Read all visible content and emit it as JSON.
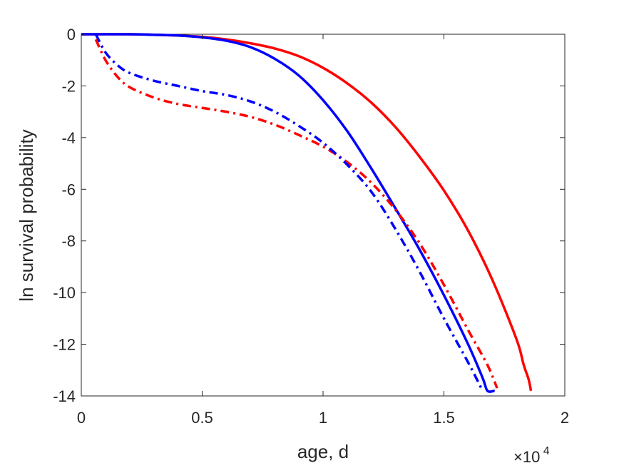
{
  "chart_data": {
    "type": "line",
    "title": "",
    "xlabel": "age, d",
    "ylabel": "ln survival probability",
    "x_multiplier": "×10",
    "x_multiplier_exponent": "4",
    "xlim": [
      0,
      20000
    ],
    "ylim": [
      -14,
      0
    ],
    "xticks": [
      0,
      5000,
      10000,
      15000,
      20000
    ],
    "xtick_labels": [
      "0",
      "0.5",
      "1",
      "1.5",
      "2"
    ],
    "yticks": [
      0,
      -2,
      -4,
      -6,
      -8,
      -10,
      -12,
      -14
    ],
    "ytick_labels": [
      "0",
      "-2",
      "-4",
      "-6",
      "-8",
      "-10",
      "-12",
      "-14"
    ],
    "grid": false,
    "legend": false,
    "series": [
      {
        "color": "#ff0000",
        "style": "solid",
        "points": [
          [
            0,
            0
          ],
          [
            2000,
            0
          ],
          [
            4000,
            -0.05
          ],
          [
            5000,
            -0.1
          ],
          [
            6000,
            -0.2
          ],
          [
            7000,
            -0.35
          ],
          [
            8000,
            -0.55
          ],
          [
            9000,
            -0.85
          ],
          [
            10000,
            -1.3
          ],
          [
            11000,
            -1.9
          ],
          [
            12000,
            -2.65
          ],
          [
            13000,
            -3.6
          ],
          [
            14000,
            -4.75
          ],
          [
            15000,
            -6.05
          ],
          [
            16000,
            -7.6
          ],
          [
            17000,
            -9.5
          ],
          [
            18000,
            -11.8
          ],
          [
            18300,
            -12.8
          ],
          [
            18500,
            -13.35
          ],
          [
            18600,
            -13.8
          ]
        ]
      },
      {
        "color": "#0000ff",
        "style": "solid",
        "points": [
          [
            0,
            0
          ],
          [
            2000,
            0
          ],
          [
            3000,
            -0.02
          ],
          [
            4000,
            -0.05
          ],
          [
            5000,
            -0.12
          ],
          [
            6000,
            -0.25
          ],
          [
            7000,
            -0.5
          ],
          [
            8000,
            -0.95
          ],
          [
            9000,
            -1.6
          ],
          [
            10000,
            -2.55
          ],
          [
            11000,
            -3.75
          ],
          [
            12000,
            -5.2
          ],
          [
            13000,
            -6.75
          ],
          [
            14000,
            -8.35
          ],
          [
            15000,
            -10.1
          ],
          [
            16000,
            -12.0
          ],
          [
            16600,
            -13.3
          ],
          [
            16800,
            -13.8
          ],
          [
            17100,
            -13.8
          ]
        ]
      },
      {
        "color": "#ff0000",
        "style": "dashdot",
        "points": [
          [
            600,
            -0.2
          ],
          [
            1000,
            -1.0
          ],
          [
            1500,
            -1.65
          ],
          [
            2000,
            -2.05
          ],
          [
            3000,
            -2.45
          ],
          [
            4000,
            -2.7
          ],
          [
            5000,
            -2.85
          ],
          [
            6000,
            -3.0
          ],
          [
            7000,
            -3.2
          ],
          [
            8000,
            -3.5
          ],
          [
            9000,
            -3.9
          ],
          [
            10000,
            -4.35
          ],
          [
            11000,
            -4.95
          ],
          [
            12000,
            -5.75
          ],
          [
            13000,
            -6.8
          ],
          [
            14000,
            -8.1
          ],
          [
            15000,
            -9.7
          ],
          [
            16000,
            -11.45
          ],
          [
            16800,
            -12.8
          ],
          [
            17200,
            -13.7
          ]
        ]
      },
      {
        "color": "#0000ff",
        "style": "dashdot",
        "points": [
          [
            600,
            0
          ],
          [
            1000,
            -0.7
          ],
          [
            1500,
            -1.2
          ],
          [
            2000,
            -1.5
          ],
          [
            3000,
            -1.8
          ],
          [
            4000,
            -2.0
          ],
          [
            5000,
            -2.2
          ],
          [
            6000,
            -2.35
          ],
          [
            7000,
            -2.6
          ],
          [
            8000,
            -3.0
          ],
          [
            9000,
            -3.55
          ],
          [
            10000,
            -4.2
          ],
          [
            11000,
            -5.05
          ],
          [
            12000,
            -6.1
          ],
          [
            13000,
            -7.55
          ],
          [
            14000,
            -9.2
          ],
          [
            15000,
            -11.0
          ],
          [
            16000,
            -12.7
          ],
          [
            16600,
            -13.8
          ]
        ]
      }
    ]
  }
}
